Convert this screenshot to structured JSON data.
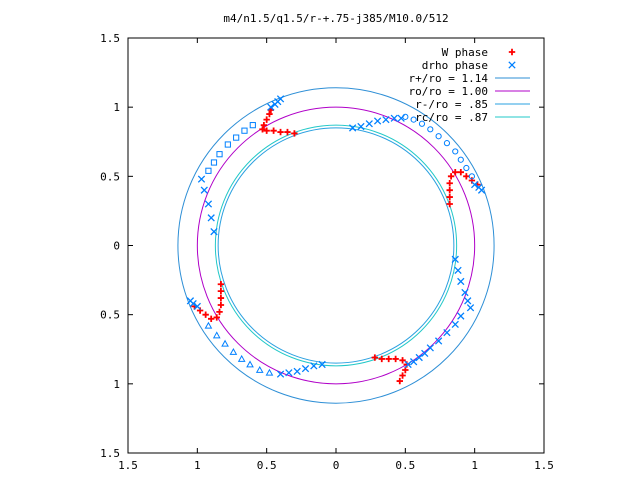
{
  "chart_data": {
    "type": "scatter",
    "title": "m4/n1.5/q1.5/r-+.75-j385/M10.0/512",
    "xlim": [
      -1.5,
      1.5
    ],
    "ylim": [
      -1.5,
      1.5
    ],
    "xticks": [
      {
        "v": -1.5,
        "label": "1.5"
      },
      {
        "v": -1,
        "label": "1"
      },
      {
        "v": -0.5,
        "label": "0.5"
      },
      {
        "v": 0,
        "label": "0"
      },
      {
        "v": 0.5,
        "label": "0.5"
      },
      {
        "v": 1,
        "label": "1"
      },
      {
        "v": 1.5,
        "label": "1.5"
      }
    ],
    "yticks": [
      {
        "v": 1.5,
        "label": "1.5"
      },
      {
        "v": 1,
        "label": "1"
      },
      {
        "v": 0.5,
        "label": "0.5"
      },
      {
        "v": 0,
        "label": "0"
      },
      {
        "v": -0.5,
        "label": "0.5"
      },
      {
        "v": -1,
        "label": "1"
      },
      {
        "v": -1.5,
        "label": "1.5"
      }
    ],
    "grid": false,
    "legend_position": "top-right",
    "legend": [
      {
        "label": "W phase",
        "kind": "plus",
        "color": "#ff0000"
      },
      {
        "label": "drho phase",
        "kind": "cross",
        "color": "#0080ff"
      },
      {
        "label": "r+/ro = 1.14",
        "kind": "line",
        "color": "#2e8fd6"
      },
      {
        "label": "ro/ro = 1.00",
        "kind": "line",
        "color": "#b000c8"
      },
      {
        "label": "r-/ro = .85",
        "kind": "line",
        "color": "#2aa0e0"
      },
      {
        "label": "rc/ro = .87",
        "kind": "line",
        "color": "#22c8c8"
      }
    ],
    "circles": [
      {
        "name": "r+/ro = 1.14",
        "r": 1.14,
        "color": "#2e8fd6"
      },
      {
        "name": "ro/ro = 1.00",
        "r": 1.0,
        "color": "#b000c8"
      },
      {
        "name": "r-/ro = .85",
        "r": 0.85,
        "color": "#2aa0e0"
      },
      {
        "name": "rc/ro = .87",
        "r": 0.87,
        "color": "#22c8c8"
      }
    ],
    "series": [
      {
        "name": "W phase",
        "marker": "plus",
        "color": "#ff0000",
        "points": [
          [
            -0.47,
            0.98
          ],
          [
            -0.48,
            0.95
          ],
          [
            -0.5,
            0.91
          ],
          [
            -0.52,
            0.87
          ],
          [
            -0.53,
            0.84
          ],
          [
            -0.5,
            0.83
          ],
          [
            -0.45,
            0.83
          ],
          [
            -0.4,
            0.82
          ],
          [
            -0.35,
            0.82
          ],
          [
            -0.3,
            0.81
          ],
          [
            0.82,
            0.3
          ],
          [
            0.82,
            0.35
          ],
          [
            0.82,
            0.4
          ],
          [
            0.82,
            0.45
          ],
          [
            0.83,
            0.5
          ],
          [
            0.86,
            0.53
          ],
          [
            0.9,
            0.53
          ],
          [
            0.94,
            0.5
          ],
          [
            0.98,
            0.47
          ],
          [
            1.02,
            0.44
          ],
          [
            -0.83,
            -0.28
          ],
          [
            -0.83,
            -0.33
          ],
          [
            -0.83,
            -0.38
          ],
          [
            -0.83,
            -0.43
          ],
          [
            -0.84,
            -0.48
          ],
          [
            -0.86,
            -0.52
          ],
          [
            -0.9,
            -0.53
          ],
          [
            -0.94,
            -0.5
          ],
          [
            -0.98,
            -0.47
          ],
          [
            -1.02,
            -0.44
          ],
          [
            0.28,
            -0.81
          ],
          [
            0.33,
            -0.82
          ],
          [
            0.38,
            -0.82
          ],
          [
            0.43,
            -0.82
          ],
          [
            0.48,
            -0.83
          ],
          [
            0.51,
            -0.86
          ],
          [
            0.5,
            -0.9
          ],
          [
            0.48,
            -0.94
          ],
          [
            0.46,
            -0.98
          ]
        ]
      },
      {
        "name": "drho phase",
        "marker": "cross",
        "color": "#0080ff",
        "points": [
          [
            -0.47,
            1.0
          ],
          [
            -0.44,
            1.02
          ],
          [
            -0.42,
            1.04
          ],
          [
            -0.4,
            1.06
          ],
          [
            0.12,
            0.85
          ],
          [
            0.18,
            0.86
          ],
          [
            0.24,
            0.88
          ],
          [
            0.3,
            0.9
          ],
          [
            0.36,
            0.91
          ],
          [
            0.42,
            0.92
          ],
          [
            0.47,
            0.92
          ],
          [
            1.0,
            0.44
          ],
          [
            1.03,
            0.42
          ],
          [
            1.05,
            0.4
          ],
          [
            0.86,
            -0.1
          ],
          [
            0.88,
            -0.18
          ],
          [
            0.9,
            -0.26
          ],
          [
            0.93,
            -0.34
          ],
          [
            0.95,
            -0.4
          ],
          [
            0.97,
            -0.45
          ],
          [
            0.52,
            -0.86
          ],
          [
            0.56,
            -0.84
          ],
          [
            0.6,
            -0.81
          ],
          [
            0.64,
            -0.78
          ],
          [
            -0.1,
            -0.86
          ],
          [
            -0.16,
            -0.87
          ],
          [
            -0.22,
            -0.89
          ],
          [
            -0.28,
            -0.91
          ],
          [
            -0.34,
            -0.92
          ],
          [
            -0.4,
            -0.93
          ],
          [
            -0.88,
            0.1
          ],
          [
            -0.9,
            0.2
          ],
          [
            -0.92,
            0.3
          ],
          [
            -0.95,
            0.4
          ],
          [
            -0.97,
            0.48
          ],
          [
            -1.0,
            -0.44
          ],
          [
            -1.03,
            -0.42
          ],
          [
            -1.05,
            -0.4
          ]
        ]
      },
      {
        "name": "outer markers",
        "marker": "circle",
        "color": "#0080ff",
        "points": [
          [
            0.5,
            0.93
          ],
          [
            0.56,
            0.91
          ],
          [
            0.62,
            0.88
          ],
          [
            0.68,
            0.84
          ],
          [
            0.74,
            0.79
          ],
          [
            0.8,
            0.74
          ],
          [
            0.86,
            0.68
          ],
          [
            0.9,
            0.62
          ],
          [
            0.94,
            0.56
          ],
          [
            0.98,
            0.5
          ]
        ]
      },
      {
        "name": "outer markers 2",
        "marker": "square",
        "color": "#0080ff",
        "points": [
          [
            -0.6,
            0.87
          ],
          [
            -0.66,
            0.83
          ],
          [
            -0.72,
            0.78
          ],
          [
            -0.78,
            0.73
          ],
          [
            -0.84,
            0.66
          ],
          [
            -0.88,
            0.6
          ],
          [
            -0.92,
            0.54
          ]
        ]
      },
      {
        "name": "outer markers 3",
        "marker": "triangle",
        "color": "#0080ff",
        "points": [
          [
            -0.92,
            -0.58
          ],
          [
            -0.86,
            -0.65
          ],
          [
            -0.8,
            -0.71
          ],
          [
            -0.74,
            -0.77
          ],
          [
            -0.68,
            -0.82
          ],
          [
            -0.62,
            -0.86
          ],
          [
            -0.55,
            -0.9
          ],
          [
            -0.48,
            -0.92
          ]
        ]
      },
      {
        "name": "outer markers 4",
        "marker": "cross",
        "color": "#0080ff",
        "points": [
          [
            0.68,
            -0.74
          ],
          [
            0.74,
            -0.69
          ],
          [
            0.8,
            -0.63
          ],
          [
            0.86,
            -0.57
          ],
          [
            0.9,
            -0.51
          ]
        ]
      }
    ]
  }
}
